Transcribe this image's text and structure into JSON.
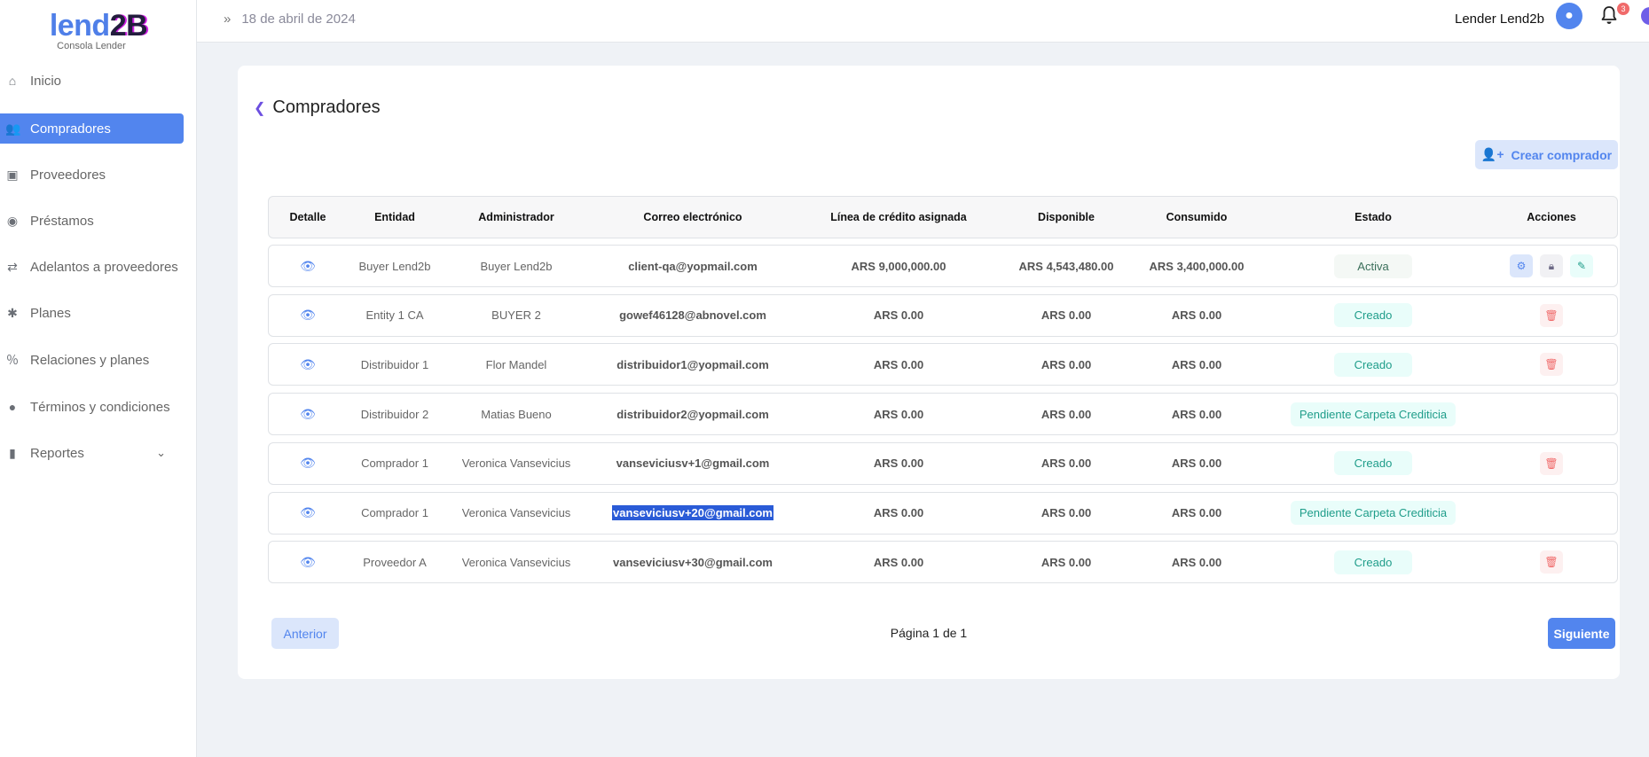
{
  "sidebar": {
    "logo_a": "lend",
    "logo_b": "2B",
    "subtitle": "Consola Lender",
    "items": [
      {
        "label": "Inicio",
        "icon": "⌂"
      },
      {
        "label": "Compradores",
        "icon": "👥"
      },
      {
        "label": "Proveedores",
        "icon": "▣"
      },
      {
        "label": "Préstamos",
        "icon": "◉"
      },
      {
        "label": "Adelantos a proveedores",
        "icon": "⇄"
      },
      {
        "label": "Planes",
        "icon": "✱"
      },
      {
        "label": "Relaciones y planes",
        "icon": "％"
      },
      {
        "label": "Términos y condiciones",
        "icon": "●"
      },
      {
        "label": "Reportes",
        "icon": "▮"
      }
    ],
    "active": "Compradores"
  },
  "header": {
    "date": "18 de abril de 2024",
    "user": "Lender Lend2b",
    "notifications": "3"
  },
  "main": {
    "title": "Compradores",
    "create_label": "Crear comprador",
    "columns": [
      "Detalle",
      "Entidad",
      "Administrador",
      "Correo electrónico",
      "Línea de crédito asignada",
      "Disponible",
      "Consumido",
      "Estado",
      "Acciones"
    ],
    "rows": [
      {
        "entidad": "Buyer Lend2b",
        "admin": "Buyer Lend2b",
        "correo": "client-qa@yopmail.com",
        "linea": "ARS 9,000,000.00",
        "disponible": "ARS 4,543,480.00",
        "consumido": "ARS 3,400,000.00",
        "estado": "Activa"
      },
      {
        "entidad": "Entity 1 CA",
        "admin": "BUYER 2",
        "correo": "gowef46128@abnovel.com",
        "linea": "ARS 0.00",
        "disponible": "ARS 0.00",
        "consumido": "ARS 0.00",
        "estado": "Creado"
      },
      {
        "entidad": "Distribuidor 1",
        "admin": "Flor Mandel",
        "correo": "distribuidor1@yopmail.com",
        "linea": "ARS 0.00",
        "disponible": "ARS 0.00",
        "consumido": "ARS 0.00",
        "estado": "Creado"
      },
      {
        "entidad": "Distribuidor 2",
        "admin": "Matias Bueno",
        "correo": "distribuidor2@yopmail.com",
        "linea": "ARS 0.00",
        "disponible": "ARS 0.00",
        "consumido": "ARS 0.00",
        "estado": "Pendiente Carpeta Crediticia"
      },
      {
        "entidad": "Comprador 1",
        "admin": "Veronica Vansevicius",
        "correo": "vanseviciusv+1@gmail.com",
        "linea": "ARS 0.00",
        "disponible": "ARS 0.00",
        "consumido": "ARS 0.00",
        "estado": "Creado"
      },
      {
        "entidad": "Comprador 1",
        "admin": "Veronica Vansevicius",
        "correo": "vanseviciusv+20@gmail.com",
        "linea": "ARS 0.00",
        "disponible": "ARS 0.00",
        "consumido": "ARS 0.00",
        "estado": "Pendiente Carpeta Crediticia",
        "selected": true
      },
      {
        "entidad": "Proveedor A",
        "admin": "Veronica Vansevicius",
        "correo": "vanseviciusv+30@gmail.com",
        "linea": "ARS 0.00",
        "disponible": "ARS 0.00",
        "consumido": "ARS 0.00",
        "estado": "Creado"
      }
    ],
    "pagination": {
      "prev": "Anterior",
      "info": "Página 1 de 1",
      "next": "Siguiente"
    }
  },
  "colors": {
    "accent": "#5285ee",
    "active_status": "#3a6f5a",
    "created_status": "#1f9d8a",
    "danger": "#f06a6a"
  }
}
